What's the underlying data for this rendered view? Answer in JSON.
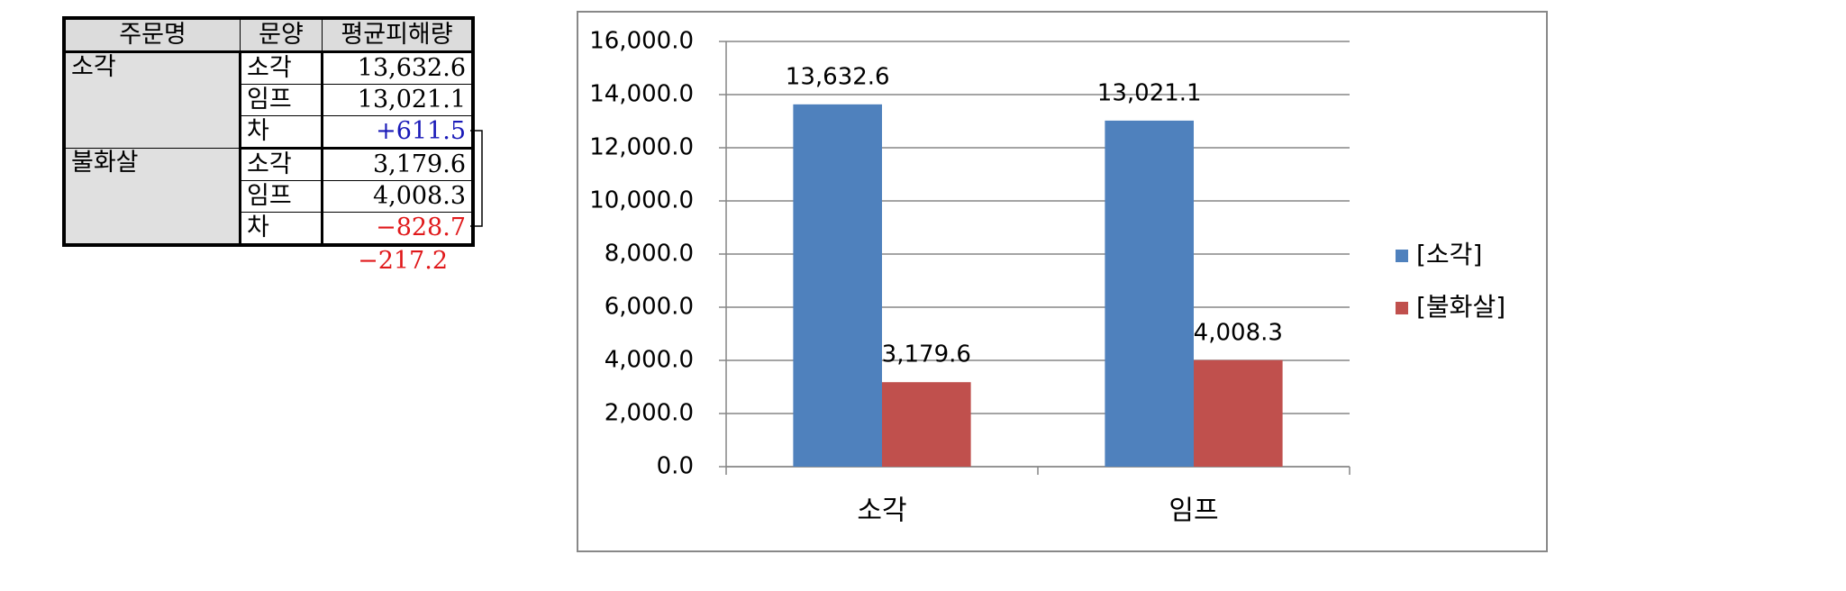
{
  "table": {
    "header": [
      "주문명",
      "문양",
      "평균피해량"
    ],
    "groups": [
      {
        "name": "소각",
        "rows": [
          [
            "소각",
            "13,632.6"
          ],
          [
            "임프",
            "13,021.1"
          ],
          [
            "차",
            "+611.5"
          ]
        ]
      },
      {
        "name": "불화살",
        "rows": [
          [
            "소각",
            "3,179.6"
          ],
          [
            "임프",
            "4,008.3"
          ],
          [
            "차",
            "−828.7"
          ]
        ]
      }
    ],
    "total": "−217.2"
  },
  "chart_data": {
    "type": "bar",
    "categories": [
      "소각",
      "임프"
    ],
    "series": [
      {
        "name": "[소각]",
        "color": "#4f81bd",
        "values": [
          13632.6,
          13021.1
        ],
        "value_labels": [
          "13,632.6",
          "13,021.1"
        ]
      },
      {
        "name": "[불화살]",
        "color": "#c0504d",
        "values": [
          3179.6,
          4008.3
        ],
        "value_labels": [
          "3,179.6",
          "4,008.3"
        ]
      }
    ],
    "ylim": [
      0,
      16000
    ],
    "yticks": [
      {
        "value": 0,
        "label": "0.0"
      },
      {
        "value": 2000,
        "label": "2,000.0"
      },
      {
        "value": 4000,
        "label": "4,000.0"
      },
      {
        "value": 6000,
        "label": "6,000.0"
      },
      {
        "value": 8000,
        "label": "8,000.0"
      },
      {
        "value": 10000,
        "label": "10,000.0"
      },
      {
        "value": 12000,
        "label": "12,000.0"
      },
      {
        "value": 14000,
        "label": "14,000.0"
      },
      {
        "value": 16000,
        "label": "16,000.0"
      }
    ],
    "grid": true,
    "legend": "right"
  }
}
